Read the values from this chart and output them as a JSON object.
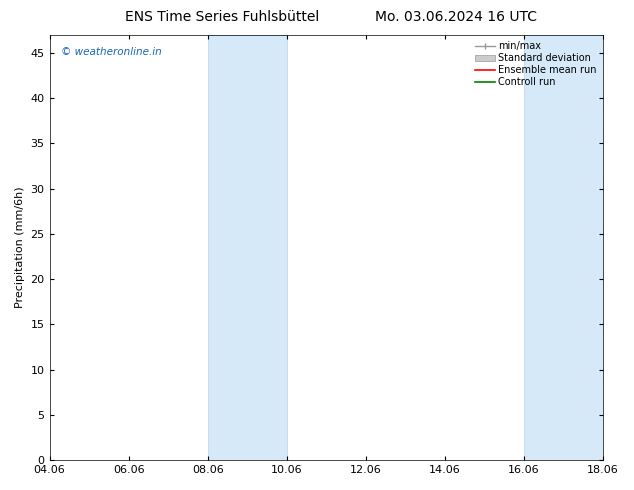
{
  "title_left": "ENS Time Series Fuhlsbüttel",
  "title_right": "Mo. 03.06.2024 16 UTC",
  "xlabel_ticks": [
    "04.06",
    "06.06",
    "08.06",
    "10.06",
    "12.06",
    "14.06",
    "16.06",
    "18.06"
  ],
  "xlim": [
    0,
    14
  ],
  "ylim": [
    0,
    47
  ],
  "yticks": [
    0,
    5,
    10,
    15,
    20,
    25,
    30,
    35,
    40,
    45
  ],
  "ylabel": "Precipitation (mm/6h)",
  "shaded_bands": [
    {
      "x_start": 4.0,
      "x_end": 6.0
    },
    {
      "x_start": 12.0,
      "x_end": 14.0
    }
  ],
  "band_color": "#d6e9f8",
  "band_edge_color": "#b8d4ea",
  "watermark_text": "© weatheronline.in",
  "watermark_color": "#1565c0",
  "legend_entries": [
    {
      "label": "min/max",
      "color": "#999999",
      "style": "errorbar"
    },
    {
      "label": "Standard deviation",
      "color": "#cccccc",
      "style": "box"
    },
    {
      "label": "Ensemble mean run",
      "color": "red",
      "style": "line"
    },
    {
      "label": "Controll run",
      "color": "green",
      "style": "line"
    }
  ],
  "bg_color": "#ffffff",
  "plot_bg_color": "#ffffff",
  "title_fontsize": 10,
  "tick_fontsize": 8,
  "ylabel_fontsize": 8,
  "legend_fontsize": 7,
  "figsize": [
    6.34,
    4.9
  ],
  "dpi": 100
}
